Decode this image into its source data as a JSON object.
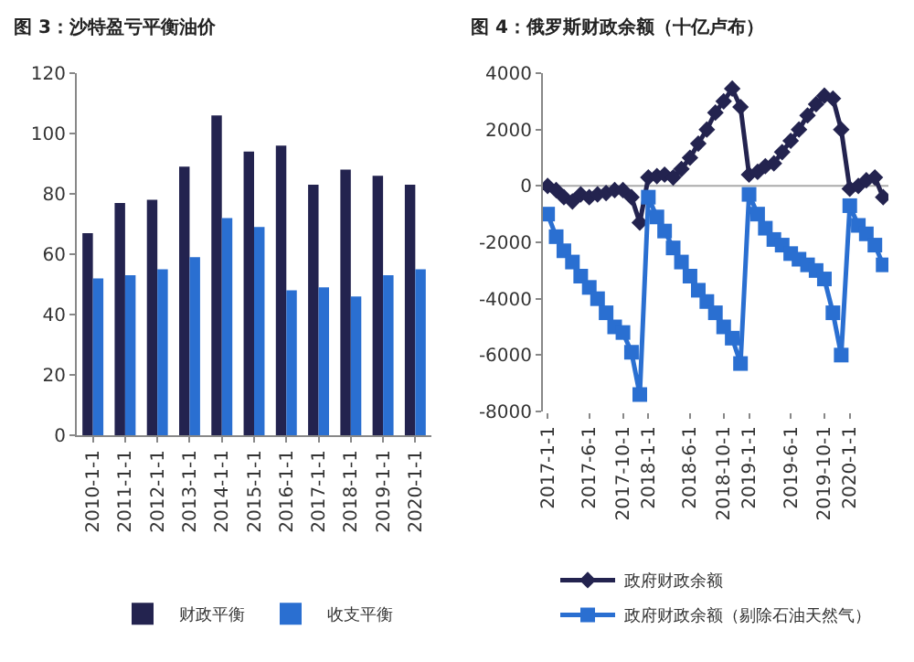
{
  "chart_data": [
    {
      "type": "bar",
      "title": "图 3：沙特盈亏平衡油价",
      "categories": [
        "2010-1-1",
        "2011-1-1",
        "2012-1-1",
        "2013-1-1",
        "2014-1-1",
        "2015-1-1",
        "2016-1-1",
        "2017-1-1",
        "2018-1-1",
        "2019-1-1",
        "2020-1-1"
      ],
      "series": [
        {
          "name": "财政平衡",
          "color": "#23234f",
          "values": [
            67,
            77,
            78,
            89,
            106,
            94,
            96,
            83,
            88,
            86,
            83
          ]
        },
        {
          "name": "收支平衡",
          "color": "#2a6fd1",
          "values": [
            52,
            53,
            55,
            59,
            72,
            69,
            48,
            49,
            46,
            53,
            55
          ]
        }
      ],
      "ylim": [
        0,
        120
      ],
      "yticks": [
        0,
        20,
        40,
        60,
        80,
        100,
        120
      ],
      "grid": false,
      "legend": "bottom"
    },
    {
      "type": "line",
      "title": "图 4：俄罗斯财政余额（十亿卢布）",
      "x": [
        "2017-01",
        "2017-02",
        "2017-03",
        "2017-04",
        "2017-05",
        "2017-06",
        "2017-07",
        "2017-08",
        "2017-09",
        "2017-10",
        "2017-11",
        "2017-12",
        "2018-01",
        "2018-02",
        "2018-03",
        "2018-04",
        "2018-05",
        "2018-06",
        "2018-07",
        "2018-08",
        "2018-09",
        "2018-10",
        "2018-11",
        "2018-12",
        "2019-01",
        "2019-02",
        "2019-03",
        "2019-04",
        "2019-05",
        "2019-06",
        "2019-07",
        "2019-08",
        "2019-09",
        "2019-10",
        "2019-11",
        "2019-12",
        "2020-01",
        "2020-02",
        "2020-03",
        "2020-04",
        "2020-05"
      ],
      "series": [
        {
          "name": "政府财政余额",
          "color": "#23234f",
          "marker": "diamond",
          "values": [
            0,
            -150,
            -400,
            -550,
            -300,
            -400,
            -300,
            -250,
            -150,
            -150,
            -400,
            -1300,
            300,
            350,
            400,
            300,
            600,
            1000,
            1500,
            2000,
            2600,
            3000,
            3450,
            2800,
            400,
            500,
            700,
            800,
            1200,
            1600,
            2000,
            2500,
            2900,
            3200,
            3100,
            2000,
            -100,
            0,
            200,
            300,
            -400
          ]
        },
        {
          "name": "政府财政余额（剔除石油天然气）",
          "color": "#2a6fd1",
          "marker": "square",
          "values": [
            -1000,
            -1800,
            -2300,
            -2700,
            -3200,
            -3600,
            -4000,
            -4500,
            -5000,
            -5200,
            -5900,
            -7400,
            -400,
            -1100,
            -1600,
            -2200,
            -2700,
            -3200,
            -3700,
            -4100,
            -4500,
            -5000,
            -5400,
            -6300,
            -300,
            -1000,
            -1500,
            -1900,
            -2100,
            -2400,
            -2600,
            -2800,
            -3000,
            -3300,
            -4500,
            -6000,
            -700,
            -1400,
            -1700,
            -2100,
            -2800
          ]
        }
      ],
      "xlim": [
        "2016-12-15",
        "2020-05-20"
      ],
      "xticks": [
        {
          "value": "2017-01-01",
          "label": "2017-1-1"
        },
        {
          "value": "2017-06-01",
          "label": "2017-6-1"
        },
        {
          "value": "2017-10-01",
          "label": "2017-10-1"
        },
        {
          "value": "2018-01-01",
          "label": "2018-1-1"
        },
        {
          "value": "2018-06-01",
          "label": "2018-6-1"
        },
        {
          "value": "2018-10-01",
          "label": "2018-10-1"
        },
        {
          "value": "2019-01-01",
          "label": "2019-1-1"
        },
        {
          "value": "2019-06-01",
          "label": "2019-6-1"
        },
        {
          "value": "2019-10-01",
          "label": "2019-10-1"
        },
        {
          "value": "2020-01-01",
          "label": "2020-1-1"
        }
      ],
      "ylim": [
        -8000,
        4000
      ],
      "yticks": [
        -8000,
        -6000,
        -4000,
        -2000,
        0,
        2000,
        4000
      ],
      "ref_lines": [
        {
          "axis": "y",
          "value": 0,
          "color": "#aaaaaa"
        }
      ],
      "grid": false,
      "legend": "bottom",
      "line_style": "solid"
    }
  ]
}
